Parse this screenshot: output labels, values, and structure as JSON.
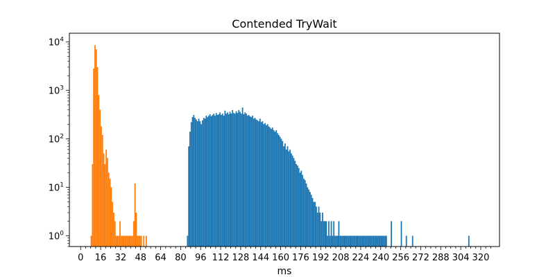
{
  "chart_data": {
    "type": "bar",
    "title": "Contended TryWait",
    "xlabel": "ms",
    "ylabel": "",
    "scale": {
      "y": "log"
    },
    "xlim": [
      -9,
      335
    ],
    "ylim": [
      0.6,
      15000
    ],
    "grid": false,
    "legend": "none",
    "x_tick_labels": [
      "0",
      "16",
      "32",
      "48",
      "64",
      "80",
      "96",
      "112",
      "128",
      "144",
      "160",
      "176",
      "192",
      "208",
      "224",
      "240",
      "256",
      "272",
      "288",
      "304",
      "320"
    ],
    "y_ticks": [
      {
        "value": 1,
        "base": "10",
        "exp": "0"
      },
      {
        "value": 10,
        "base": "10",
        "exp": "1"
      },
      {
        "value": 100,
        "base": "10",
        "exp": "2"
      },
      {
        "value": 1000,
        "base": "10",
        "exp": "3"
      },
      {
        "value": 10000,
        "base": "10",
        "exp": "4"
      }
    ],
    "bin_width": 1,
    "series": [
      {
        "color": "#1f77b4",
        "bins": [
          [
            85,
            1
          ],
          [
            86,
            70
          ],
          [
            87,
            140
          ],
          [
            88,
            220
          ],
          [
            89,
            280
          ],
          [
            90,
            310
          ],
          [
            91,
            270
          ],
          [
            92,
            250
          ],
          [
            93,
            230
          ],
          [
            94,
            260
          ],
          [
            95,
            230
          ],
          [
            96,
            200
          ],
          [
            97,
            240
          ],
          [
            98,
            270
          ],
          [
            99,
            260
          ],
          [
            100,
            300
          ],
          [
            101,
            280
          ],
          [
            102,
            300
          ],
          [
            103,
            320
          ],
          [
            104,
            290
          ],
          [
            105,
            310
          ],
          [
            106,
            330
          ],
          [
            107,
            300
          ],
          [
            108,
            340
          ],
          [
            109,
            310
          ],
          [
            110,
            320
          ],
          [
            111,
            350
          ],
          [
            112,
            310
          ],
          [
            113,
            330
          ],
          [
            114,
            300
          ],
          [
            115,
            380
          ],
          [
            116,
            330
          ],
          [
            117,
            350
          ],
          [
            118,
            320
          ],
          [
            119,
            360
          ],
          [
            120,
            330
          ],
          [
            121,
            390
          ],
          [
            122,
            340
          ],
          [
            123,
            330
          ],
          [
            124,
            370
          ],
          [
            125,
            340
          ],
          [
            126,
            390
          ],
          [
            127,
            360
          ],
          [
            128,
            330
          ],
          [
            129,
            440
          ],
          [
            130,
            320
          ],
          [
            131,
            350
          ],
          [
            132,
            330
          ],
          [
            133,
            300
          ],
          [
            134,
            310
          ],
          [
            135,
            290
          ],
          [
            136,
            280
          ],
          [
            137,
            300
          ],
          [
            138,
            260
          ],
          [
            139,
            270
          ],
          [
            140,
            250
          ],
          [
            141,
            240
          ],
          [
            142,
            230
          ],
          [
            143,
            260
          ],
          [
            144,
            220
          ],
          [
            145,
            230
          ],
          [
            146,
            200
          ],
          [
            147,
            210
          ],
          [
            148,
            190
          ],
          [
            149,
            200
          ],
          [
            150,
            180
          ],
          [
            151,
            170
          ],
          [
            152,
            160
          ],
          [
            153,
            170
          ],
          [
            154,
            150
          ],
          [
            155,
            140
          ],
          [
            156,
            150
          ],
          [
            157,
            130
          ],
          [
            158,
            120
          ],
          [
            159,
            110
          ],
          [
            160,
            100
          ],
          [
            161,
            90
          ],
          [
            162,
            70
          ],
          [
            163,
            80
          ],
          [
            164,
            60
          ],
          [
            165,
            70
          ],
          [
            166,
            55
          ],
          [
            167,
            60
          ],
          [
            168,
            50
          ],
          [
            169,
            45
          ],
          [
            170,
            40
          ],
          [
            171,
            35
          ],
          [
            172,
            30
          ],
          [
            173,
            28
          ],
          [
            174,
            25
          ],
          [
            175,
            20
          ],
          [
            176,
            22
          ],
          [
            177,
            18
          ],
          [
            178,
            15
          ],
          [
            179,
            14
          ],
          [
            180,
            12
          ],
          [
            181,
            10
          ],
          [
            182,
            9
          ],
          [
            183,
            8
          ],
          [
            184,
            7
          ],
          [
            185,
            6
          ],
          [
            186,
            5
          ],
          [
            187,
            5
          ],
          [
            188,
            4
          ],
          [
            189,
            3
          ],
          [
            190,
            4
          ],
          [
            191,
            3
          ],
          [
            192,
            2
          ],
          [
            193,
            3
          ],
          [
            194,
            2
          ],
          [
            195,
            2
          ],
          [
            196,
            2
          ],
          [
            197,
            1
          ],
          [
            198,
            2
          ],
          [
            199,
            1
          ],
          [
            200,
            2
          ],
          [
            201,
            1
          ],
          [
            202,
            2
          ],
          [
            203,
            1
          ],
          [
            204,
            1
          ],
          [
            205,
            1
          ],
          [
            206,
            2
          ],
          [
            207,
            1
          ],
          [
            208,
            1
          ],
          [
            209,
            1
          ],
          [
            210,
            1
          ],
          [
            211,
            1
          ],
          [
            212,
            1
          ],
          [
            213,
            1
          ],
          [
            214,
            1
          ],
          [
            215,
            1
          ],
          [
            216,
            1
          ],
          [
            217,
            1
          ],
          [
            218,
            1
          ],
          [
            219,
            1
          ],
          [
            220,
            1
          ],
          [
            221,
            1
          ],
          [
            222,
            1
          ],
          [
            223,
            1
          ],
          [
            224,
            1
          ],
          [
            225,
            1
          ],
          [
            226,
            1
          ],
          [
            227,
            1
          ],
          [
            228,
            1
          ],
          [
            229,
            1
          ],
          [
            230,
            1
          ],
          [
            231,
            1
          ],
          [
            232,
            1
          ],
          [
            233,
            1
          ],
          [
            234,
            1
          ],
          [
            235,
            1
          ],
          [
            236,
            1
          ],
          [
            237,
            1
          ],
          [
            238,
            1
          ],
          [
            239,
            1
          ],
          [
            240,
            1
          ],
          [
            241,
            1
          ],
          [
            242,
            1
          ],
          [
            243,
            1
          ],
          [
            244,
            1
          ],
          [
            248,
            2
          ],
          [
            256,
            2
          ],
          [
            260,
            1
          ],
          [
            265,
            1
          ],
          [
            310,
            1
          ]
        ]
      },
      {
        "color": "#ff7f0e",
        "bins": [
          [
            8,
            1
          ],
          [
            9,
            30
          ],
          [
            10,
            2800
          ],
          [
            11,
            8500
          ],
          [
            12,
            7000
          ],
          [
            13,
            3000
          ],
          [
            14,
            800
          ],
          [
            15,
            400
          ],
          [
            16,
            180
          ],
          [
            17,
            120
          ],
          [
            18,
            50
          ],
          [
            19,
            30
          ],
          [
            20,
            60
          ],
          [
            21,
            40
          ],
          [
            22,
            20
          ],
          [
            23,
            15
          ],
          [
            24,
            10
          ],
          [
            25,
            5
          ],
          [
            26,
            3
          ],
          [
            27,
            2
          ],
          [
            28,
            1
          ],
          [
            29,
            1
          ],
          [
            30,
            1
          ],
          [
            31,
            2
          ],
          [
            32,
            1
          ],
          [
            33,
            1
          ],
          [
            34,
            1
          ],
          [
            35,
            1
          ],
          [
            36,
            1
          ],
          [
            37,
            1
          ],
          [
            38,
            1
          ],
          [
            39,
            1
          ],
          [
            40,
            1
          ],
          [
            41,
            1
          ],
          [
            42,
            2
          ],
          [
            43,
            12
          ],
          [
            44,
            3
          ],
          [
            45,
            1
          ],
          [
            46,
            1
          ],
          [
            47,
            1
          ],
          [
            48,
            1
          ],
          [
            50,
            1
          ],
          [
            52,
            1
          ]
        ]
      }
    ]
  }
}
